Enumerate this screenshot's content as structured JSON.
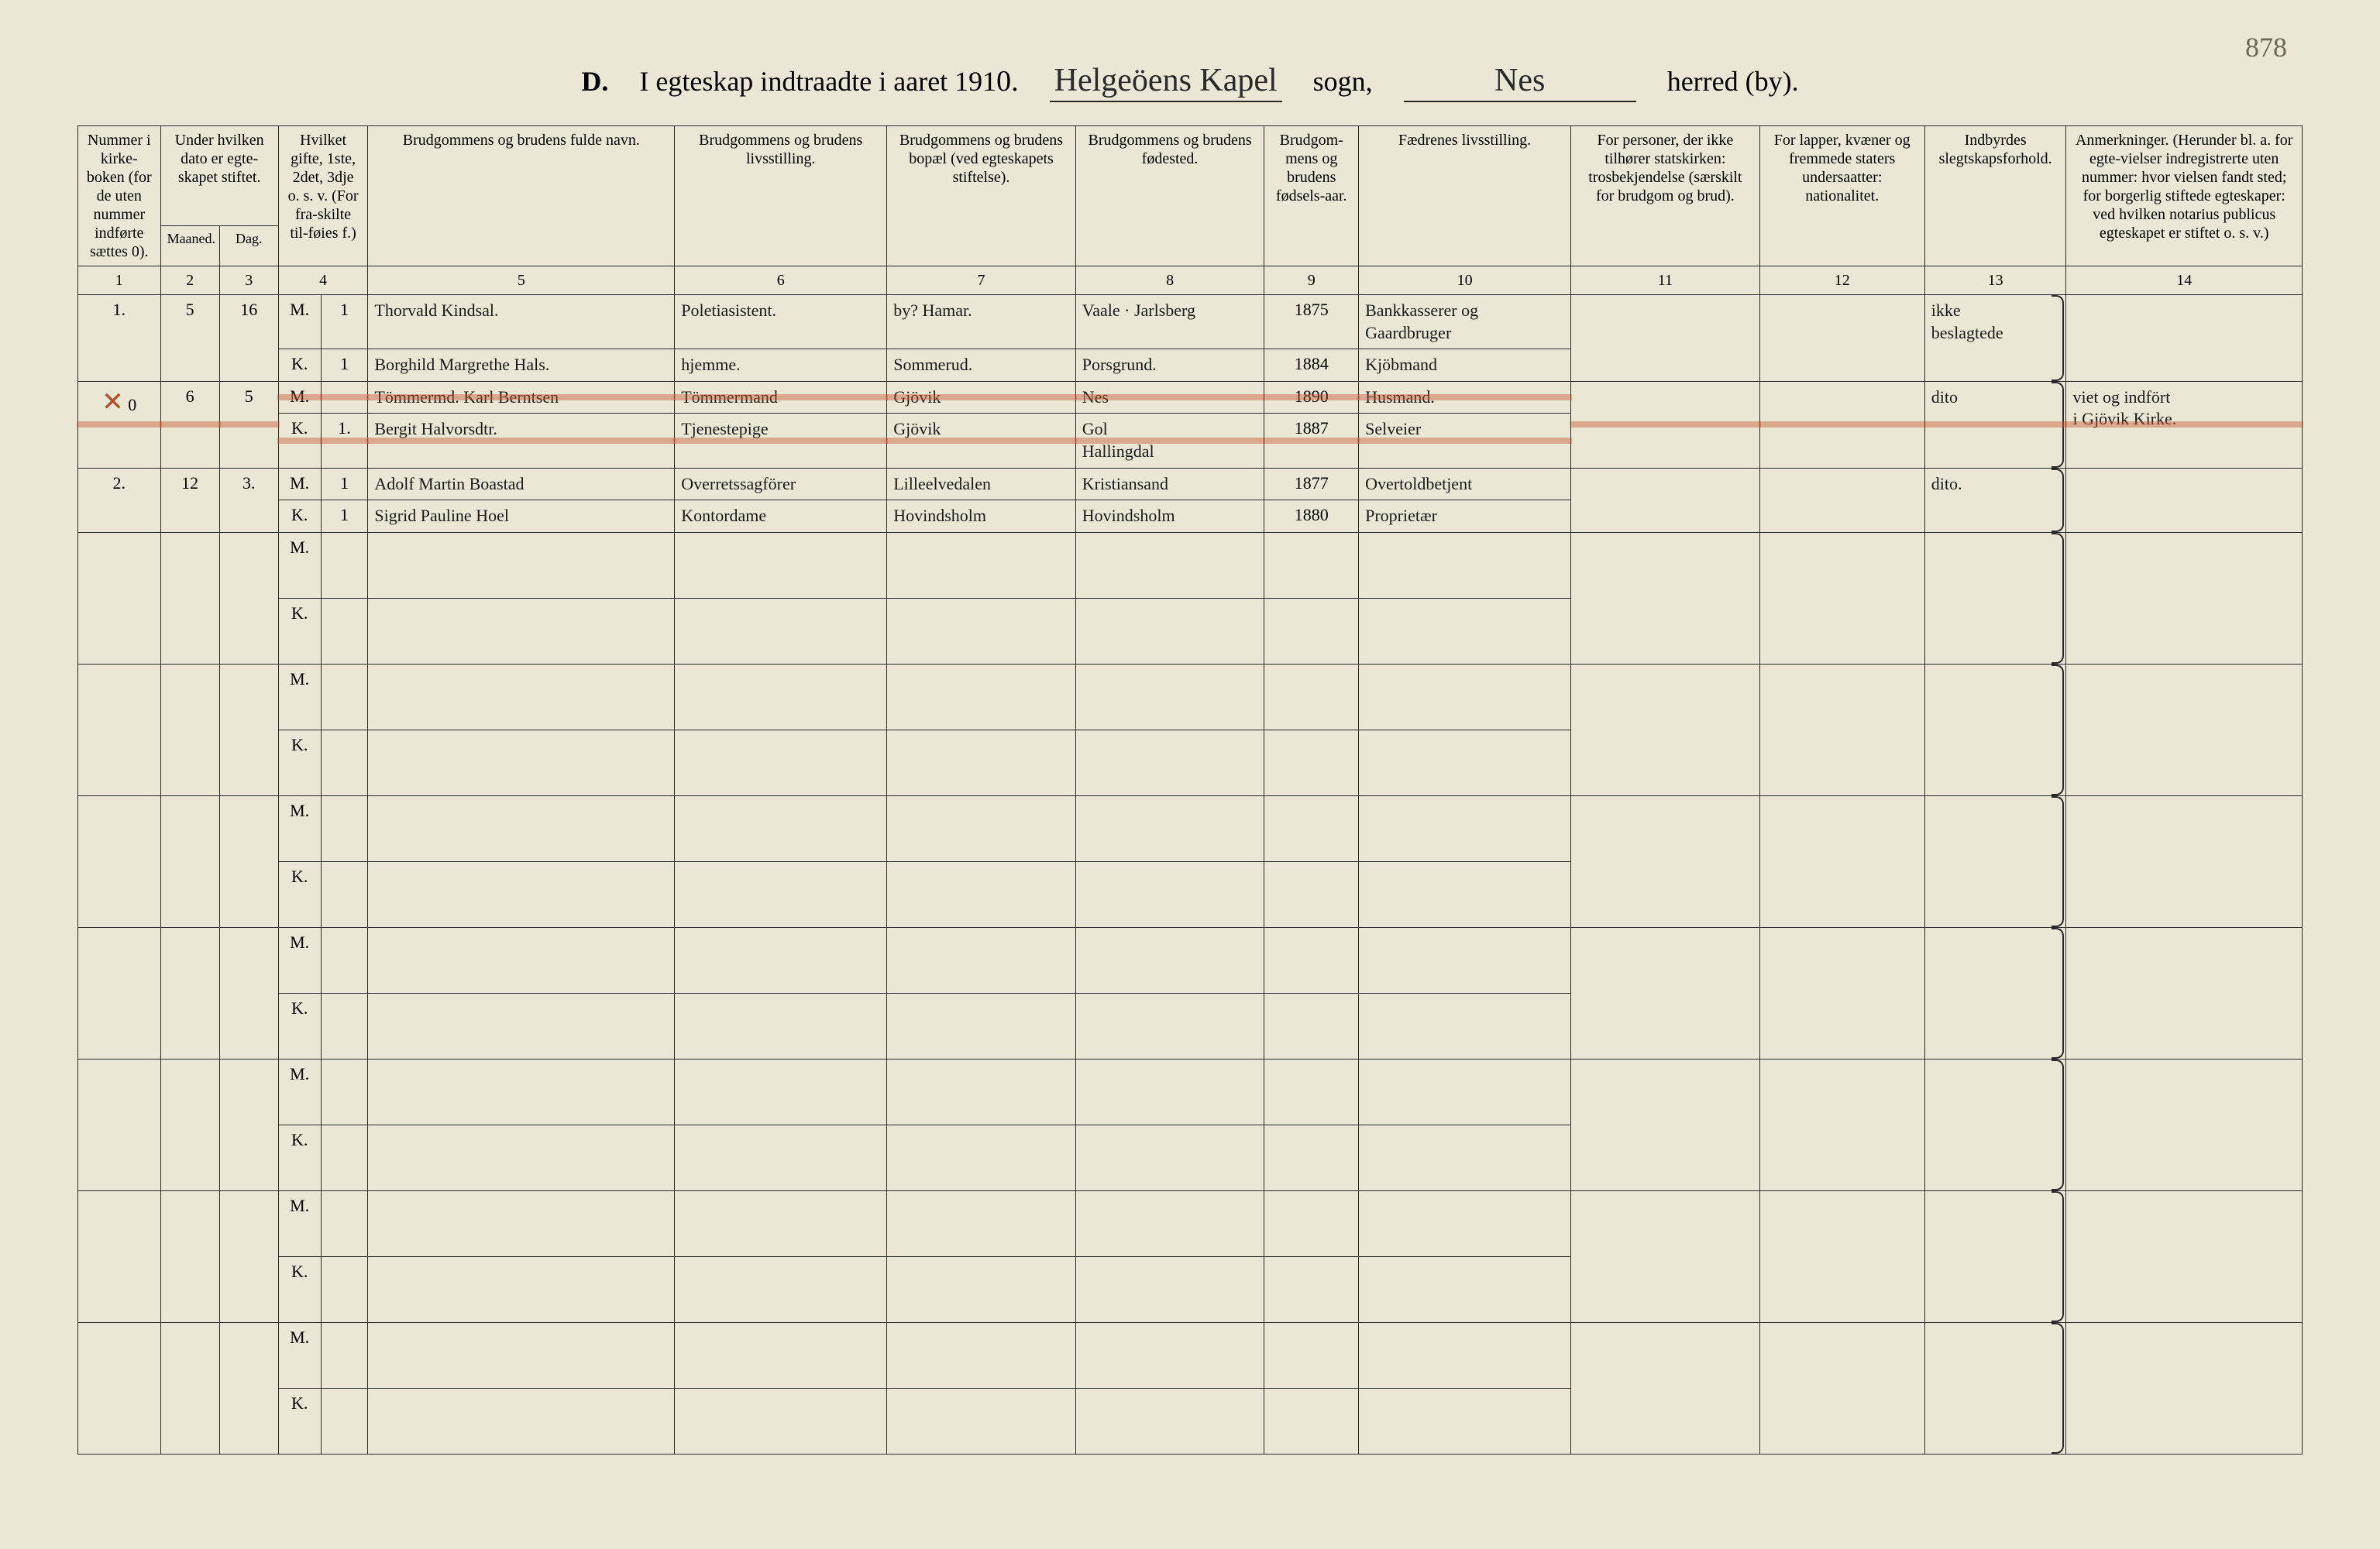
{
  "page_number": "878",
  "header": {
    "section_letter": "D.",
    "printed_left": "I egteskap indtraadte i aaret 191",
    "year_handwritten": "0.",
    "sogn_handwritten": "Helgeöens Kapel",
    "sogn_label": "sogn,",
    "herred_handwritten": "Nes",
    "herred_label": "herred (by)."
  },
  "columns": {
    "c1": "Nummer i kirke-boken (for de uten nummer indførte sættes 0).",
    "c2": "Under hvilken dato er egte-skapet stiftet.",
    "c2a": "Maaned.",
    "c2b": "Dag.",
    "c4": "Hvilket gifte, 1ste, 2det, 3dje o. s. v. (For fra-skilte til-føies f.)",
    "c5": "Brudgommens og brudens fulde navn.",
    "c6": "Brudgommens og brudens livsstilling.",
    "c7": "Brudgommens og brudens bopæl (ved egteskapets stiftelse).",
    "c8": "Brudgommens og brudens fødested.",
    "c9": "Brudgom-mens og brudens fødsels-aar.",
    "c10": "Fædrenes livsstilling.",
    "c11": "For personer, der ikke tilhører statskirken: trosbekjendelse (særskilt for brudgom og brud).",
    "c12": "For lapper, kvæner og fremmede staters undersaatter: nationalitet.",
    "c13": "Indbyrdes slegtskapsforhold.",
    "c14": "Anmerkninger. (Herunder bl. a. for egte-vielser indregistrerte uten nummer: hvor vielsen fandt sted; for borgerlig stiftede egteskaper: ved hvilken notarius publicus egteskapet er stiftet o. s. v.)"
  },
  "colnums": [
    "1",
    "2",
    "3",
    "4",
    "5",
    "6",
    "7",
    "8",
    "9",
    "10",
    "11",
    "12",
    "13",
    "14"
  ],
  "rows": [
    {
      "num": "1.",
      "maaned": "5",
      "dag": "16",
      "M": {
        "gifte": "1",
        "navn": "Thorvald Kindsal.",
        "stilling": "Poletiasistent.",
        "bopael_prefix": "by?",
        "bopael": "Hamar.",
        "fodested": "Vaale · Jarlsberg",
        "aar": "1875",
        "faedre": "Bankkasserer og Gaardbruger"
      },
      "K": {
        "gifte": "1",
        "navn": "Borghild Margrethe Hals.",
        "stilling": "hjemme.",
        "bopael": "Sommerud.",
        "fodested": "Porsgrund.",
        "aar": "1884",
        "faedre": "Kjöbmand"
      },
      "rel_top": "ikke",
      "rel_bot": "beslagtede",
      "anm": ""
    },
    {
      "strike": true,
      "num_prefix": "✕",
      "num": "0",
      "maaned": "6",
      "dag": "5",
      "M": {
        "gifte": "",
        "navn": "Tömmermd. Karl Berntsen",
        "stilling": "Tömmermand",
        "bopael": "Gjövik",
        "fodested": "Nes",
        "aar": "1890",
        "faedre": "Husmand."
      },
      "K": {
        "gifte": "1.",
        "navn": "Bergit Halvorsdtr.",
        "stilling": "Tjenestepige",
        "bopael": "Gjövik",
        "fodested_top": "Gol",
        "fodested": "Hallingdal",
        "aar": "1887",
        "faedre": "Selveier"
      },
      "rel_top": "",
      "rel_bot": "dito",
      "anm_top": "viet og indfört",
      "anm_bot": "i Gjövik Kirke."
    },
    {
      "num": "2.",
      "maaned": "12",
      "dag": "3.",
      "M": {
        "gifte": "1",
        "navn": "Adolf Martin Boastad",
        "stilling": "Overretssagförer",
        "bopael": "Lilleelvedalen",
        "fodested": "Kristiansand",
        "aar": "1877",
        "faedre": "Overtoldbetjent"
      },
      "K": {
        "gifte": "1",
        "navn": "Sigrid Pauline Hoel",
        "stilling": "Kontordame",
        "bopael": "Hovindsholm",
        "fodested": "Hovindsholm",
        "aar": "1880",
        "faedre": "Proprietær"
      },
      "rel_bot": "dito.",
      "anm": ""
    }
  ],
  "mk": {
    "M": "M.",
    "K": "K."
  },
  "empty_row_count": 7,
  "colors": {
    "paper": "#eae8d4",
    "ink": "#1a1a1a",
    "rule": "#2a2a2a",
    "red_pencil": "rgba(200,90,60,0.45)"
  }
}
